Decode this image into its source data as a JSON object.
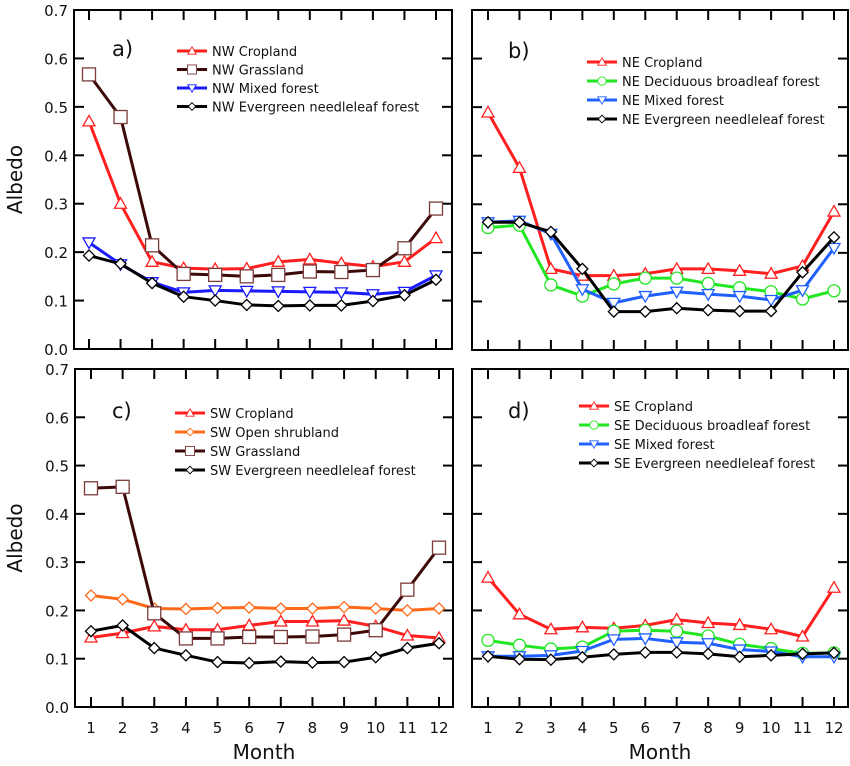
{
  "chart_data": [
    {
      "type": "line",
      "panel_label": "a)",
      "xlabel": "",
      "ylabel": "Albedo",
      "x": [
        1,
        2,
        3,
        4,
        5,
        6,
        7,
        8,
        9,
        10,
        11,
        12
      ],
      "xtick_labels_shown": false,
      "ylim": [
        0.0,
        0.7
      ],
      "yticks": [
        "0.0",
        "0.1",
        "0.2",
        "0.3",
        "0.4",
        "0.5",
        "0.6",
        "0.7"
      ],
      "ytick_labels_shown": true,
      "legend_position": "top-right",
      "series": [
        {
          "name": "NW Cropland",
          "color": "#ff1f1f",
          "marker": "triangle-up",
          "values": [
            0.47,
            0.3,
            0.18,
            0.167,
            0.165,
            0.166,
            0.18,
            0.185,
            0.177,
            0.17,
            0.18,
            0.229
          ]
        },
        {
          "name": "NW Grassland",
          "color": "#3d0808",
          "marker_edge": "#7a3b3b",
          "marker": "square",
          "values": [
            0.567,
            0.479,
            0.214,
            0.155,
            0.153,
            0.15,
            0.153,
            0.16,
            0.159,
            0.163,
            0.208,
            0.29
          ]
        },
        {
          "name": "NW Mixed forest",
          "color": "#1a1aff",
          "marker": "triangle-down",
          "values": [
            0.22,
            0.175,
            0.138,
            0.117,
            0.121,
            0.12,
            0.119,
            0.118,
            0.117,
            0.113,
            0.118,
            0.152
          ]
        },
        {
          "name": "NW Evergreen needleleaf forest",
          "color": "#000000",
          "marker": "diamond",
          "values": [
            0.193,
            0.176,
            0.136,
            0.108,
            0.1,
            0.091,
            0.089,
            0.09,
            0.09,
            0.099,
            0.111,
            0.143
          ]
        }
      ]
    },
    {
      "type": "line",
      "panel_label": "b)",
      "xlabel": "",
      "ylabel": "",
      "x": [
        1,
        2,
        3,
        4,
        5,
        6,
        7,
        8,
        9,
        10,
        11,
        12
      ],
      "xtick_labels_shown": false,
      "ylim": [
        0.0,
        0.7
      ],
      "yticks": [
        "0.0",
        "0.1",
        "0.2",
        "0.3",
        "0.4",
        "0.5",
        "0.6",
        "0.7"
      ],
      "ytick_labels_shown": false,
      "legend_position": "top-right",
      "series": [
        {
          "name": "NE Cropland",
          "color": "#ff1f1f",
          "marker": "triangle-up",
          "values": [
            0.489,
            0.375,
            0.167,
            0.153,
            0.153,
            0.157,
            0.167,
            0.167,
            0.163,
            0.157,
            0.173,
            0.285
          ]
        },
        {
          "name": "NE Deciduous broadleaf forest",
          "color": "#22e622",
          "marker": "circle",
          "values": [
            0.252,
            0.257,
            0.134,
            0.111,
            0.136,
            0.148,
            0.148,
            0.137,
            0.128,
            0.12,
            0.105,
            0.122
          ]
        },
        {
          "name": "NE Mixed forest",
          "color": "#2060ff",
          "marker": "triangle-down",
          "values": [
            0.263,
            0.266,
            0.239,
            0.125,
            0.097,
            0.111,
            0.12,
            0.115,
            0.111,
            0.103,
            0.123,
            0.21
          ]
        },
        {
          "name": "NE Evergreen needleleaf forest",
          "color": "#000000",
          "marker": "diamond",
          "values": [
            0.263,
            0.263,
            0.243,
            0.167,
            0.079,
            0.079,
            0.086,
            0.082,
            0.08,
            0.08,
            0.16,
            0.232
          ]
        }
      ]
    },
    {
      "type": "line",
      "panel_label": "c)",
      "xlabel": "Month",
      "ylabel": "Albedo",
      "x": [
        1,
        2,
        3,
        4,
        5,
        6,
        7,
        8,
        9,
        10,
        11,
        12
      ],
      "xticks": [
        "1",
        "2",
        "3",
        "4",
        "5",
        "6",
        "7",
        "8",
        "9",
        "10",
        "11",
        "12"
      ],
      "xtick_labels_shown": true,
      "ylim": [
        0.0,
        0.7
      ],
      "yticks": [
        "0.0",
        "0.1",
        "0.2",
        "0.3",
        "0.4",
        "0.5",
        "0.6",
        "0.7"
      ],
      "ytick_labels_shown": true,
      "legend_position": "top-right",
      "series": [
        {
          "name": "SW Cropland",
          "color": "#ff1f1f",
          "marker": "triangle-up",
          "values": [
            0.144,
            0.153,
            0.167,
            0.16,
            0.16,
            0.169,
            0.177,
            0.177,
            0.179,
            0.167,
            0.148,
            0.143
          ]
        },
        {
          "name": "SW Open shrubland",
          "color": "#ff6a1a",
          "marker": "diamond",
          "values": [
            0.231,
            0.223,
            0.204,
            0.203,
            0.205,
            0.206,
            0.204,
            0.204,
            0.207,
            0.204,
            0.2,
            0.204
          ]
        },
        {
          "name": "SW Grassland",
          "color": "#3d0808",
          "marker_edge": "#7a3b3b",
          "marker": "square",
          "values": [
            0.453,
            0.456,
            0.194,
            0.142,
            0.142,
            0.145,
            0.145,
            0.146,
            0.15,
            0.159,
            0.243,
            0.33
          ]
        },
        {
          "name": "SW Evergreen needleleaf forest",
          "color": "#000000",
          "marker": "diamond",
          "values": [
            0.157,
            0.169,
            0.122,
            0.107,
            0.093,
            0.091,
            0.094,
            0.092,
            0.093,
            0.103,
            0.122,
            0.132
          ]
        }
      ]
    },
    {
      "type": "line",
      "panel_label": "d)",
      "xlabel": "Month",
      "ylabel": "",
      "x": [
        1,
        2,
        3,
        4,
        5,
        6,
        7,
        8,
        9,
        10,
        11,
        12
      ],
      "xticks": [
        "1",
        "2",
        "3",
        "4",
        "5",
        "6",
        "7",
        "8",
        "9",
        "10",
        "11",
        "12"
      ],
      "xtick_labels_shown": true,
      "ylim": [
        0.0,
        0.7
      ],
      "yticks": [
        "0.0",
        "0.1",
        "0.2",
        "0.3",
        "0.4",
        "0.5",
        "0.6",
        "0.7"
      ],
      "ytick_labels_shown": false,
      "legend_position": "top-right",
      "series": [
        {
          "name": "SE Cropland",
          "color": "#ff1f1f",
          "marker": "triangle-up",
          "values": [
            0.268,
            0.192,
            0.161,
            0.165,
            0.163,
            0.169,
            0.181,
            0.174,
            0.17,
            0.161,
            0.146,
            0.247
          ]
        },
        {
          "name": "SE Deciduous broadleaf forest",
          "color": "#22e622",
          "marker": "circle",
          "values": [
            0.138,
            0.128,
            0.12,
            0.124,
            0.157,
            0.159,
            0.157,
            0.147,
            0.13,
            0.121,
            0.111,
            0.112
          ]
        },
        {
          "name": "SE Mixed forest",
          "color": "#2060ff",
          "marker": "triangle-down",
          "values": [
            0.105,
            0.105,
            0.107,
            0.116,
            0.14,
            0.142,
            0.134,
            0.132,
            0.119,
            0.115,
            0.104,
            0.104
          ]
        },
        {
          "name": "SE Evergreen needleleaf forest",
          "color": "#000000",
          "marker": "diamond",
          "values": [
            0.105,
            0.099,
            0.098,
            0.103,
            0.109,
            0.113,
            0.113,
            0.11,
            0.104,
            0.107,
            0.11,
            0.112
          ]
        }
      ]
    }
  ]
}
